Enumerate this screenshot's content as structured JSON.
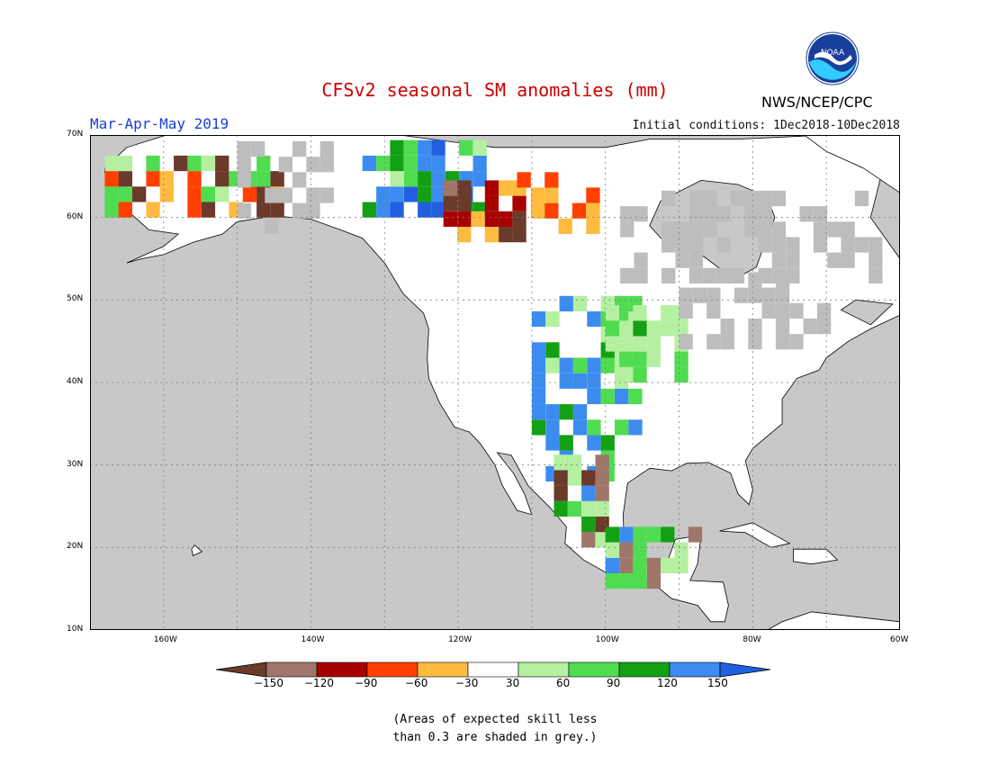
{
  "header": {
    "title": "CFSv2 seasonal SM anomalies (mm)",
    "season": "Mar-Apr-May 2019",
    "initial_conditions": "Initial conditions: 1Dec2018-10Dec2018",
    "agency": "NWS/NCEP/CPC",
    "logo_text": "NOAA"
  },
  "colors": {
    "title": "#cc0000",
    "season": "#1a3fd6",
    "ocean": "#c8c8c8",
    "land": "#ffffff",
    "skill_grey": "#bdbdbd",
    "gridline": "#7f7f7f",
    "border": "#000000"
  },
  "map": {
    "projection": "lat-lon",
    "lat_range": [
      10,
      70
    ],
    "lon_range": [
      -170,
      -60
    ],
    "lat_labels": [
      "70N",
      "60N",
      "50N",
      "40N",
      "30N",
      "20N",
      "10N"
    ],
    "lon_labels": [
      "160W",
      "140W",
      "120W",
      "100W",
      "80W",
      "60W"
    ]
  },
  "chart_data": {
    "type": "heatmap",
    "title": "CFSv2 seasonal SM anomalies (mm)",
    "units": "mm",
    "grid": true,
    "legend": {
      "placement": "bottom",
      "bins": [
        {
          "range": "< -150",
          "color": "#6b3a2a"
        },
        {
          "range": "-150 to -120",
          "color": "#a0766a"
        },
        {
          "range": "-120 to -90",
          "color": "#a80000"
        },
        {
          "range": "-90 to -60",
          "color": "#ff4000"
        },
        {
          "range": "-60 to -30",
          "color": "#ffbb40"
        },
        {
          "range": "-30 to 30",
          "color": "#ffffff"
        },
        {
          "range": "30 to 60",
          "color": "#b4f0a0"
        },
        {
          "range": "60 to 90",
          "color": "#50dc50"
        },
        {
          "range": "90 to 120",
          "color": "#14a014"
        },
        {
          "range": "120 to 150",
          "color": "#3c8cf0"
        },
        {
          "range": "> 150",
          "color": "#2060e0"
        }
      ],
      "tick_labels": [
        "-150",
        "-120",
        "-90",
        "-60",
        "-30",
        "30",
        "60",
        "90",
        "120",
        "150"
      ]
    },
    "regions": [
      {
        "lat": [
          60,
          69
        ],
        "lon": [
          -133,
          -117
        ],
        "class": "blue-green"
      },
      {
        "lat": [
          57,
          63
        ],
        "lon": [
          -122,
          -112
        ],
        "class": "brown-red"
      },
      {
        "lat": [
          58,
          65
        ],
        "lon": [
          -112,
          -100
        ],
        "class": "orange"
      },
      {
        "lat": [
          60,
          66
        ],
        "lon": [
          -168,
          -145
        ],
        "class": "orange-mix"
      },
      {
        "lat": [
          28,
          49
        ],
        "lon": [
          -110,
          -95
        ],
        "class": "green-blue"
      },
      {
        "lat": [
          20,
          30
        ],
        "lon": [
          -107,
          -100
        ],
        "class": "green-brown"
      },
      {
        "lat": [
          40,
          48
        ],
        "lon": [
          -100,
          -90
        ],
        "class": "green"
      },
      {
        "lat": [
          15,
          22
        ],
        "lon": [
          -100,
          -88
        ],
        "class": "green-mix"
      }
    ]
  },
  "footnote": {
    "line1": "(Areas of expected skill less",
    "line2": "than 0.3 are shaded in grey.)"
  }
}
